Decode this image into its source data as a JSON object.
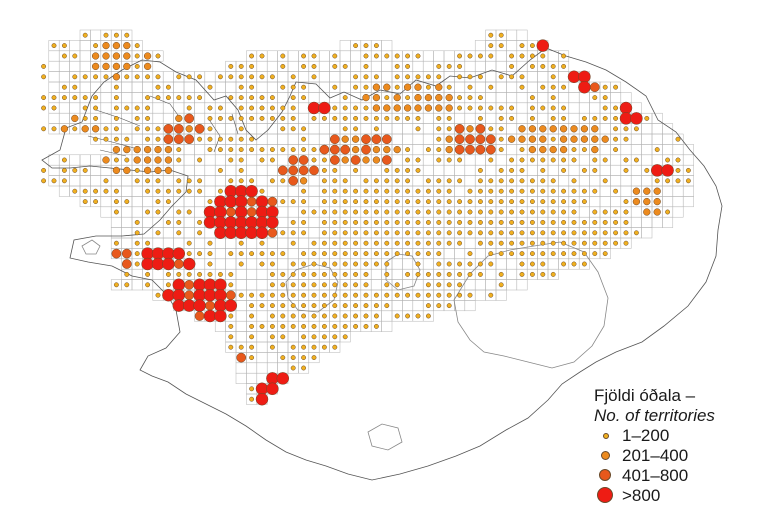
{
  "legend": {
    "title": "Fjöldi óðala –",
    "subtitle": "No. of territories",
    "classes": [
      {
        "label": "1–200",
        "color": "#f0b020"
      },
      {
        "label": "201–400",
        "color": "#ec8a1e"
      },
      {
        "label": "401–800",
        "color": "#e8581c"
      },
      {
        "label": ">800",
        "color": "#ee1c14"
      }
    ]
  },
  "colors": {
    "grid": "#b4b4b4",
    "coast": "#555555",
    "glacier": "#888888",
    "dot_outline": "#6a4a2a"
  }
}
